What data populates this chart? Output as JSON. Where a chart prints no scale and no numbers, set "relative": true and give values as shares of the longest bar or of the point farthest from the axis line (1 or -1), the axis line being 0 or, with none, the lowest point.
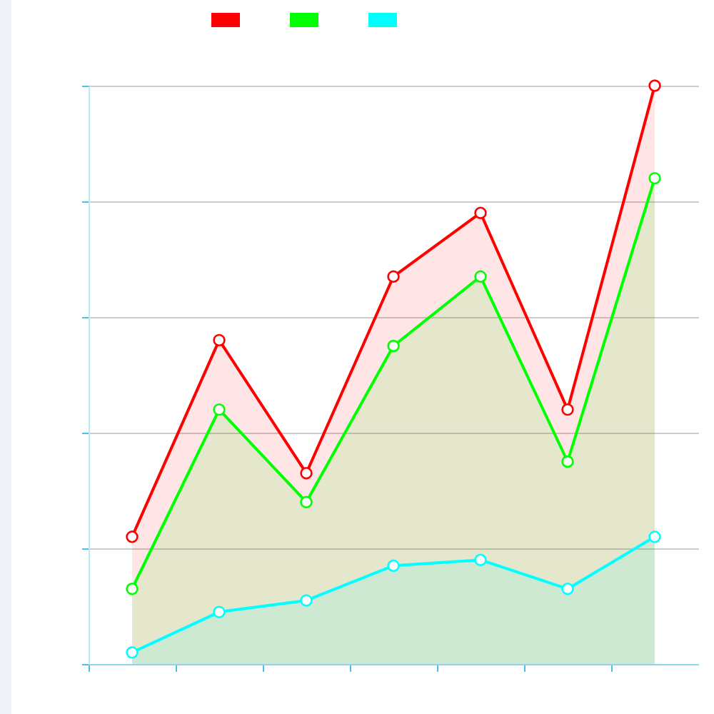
{
  "chart_data": {
    "type": "area",
    "relative": true,
    "categories": [
      null,
      null,
      null,
      null,
      null,
      null,
      null
    ],
    "series": [
      {
        "color": "#ff0000",
        "values": [
          0.22,
          0.56,
          0.33,
          0.67,
          0.78,
          0.44,
          1
        ]
      },
      {
        "color": "#00ff00",
        "values": [
          0.13,
          0.44,
          0.28,
          0.55,
          0.67,
          0.35,
          0.84
        ]
      },
      {
        "color": "#00ffff",
        "values": [
          0.02,
          0.09,
          0.11,
          0.17,
          0.18,
          0.13,
          0.22
        ]
      }
    ],
    "grid": "y",
    "marker": "circle",
    "line_style": "solid"
  }
}
